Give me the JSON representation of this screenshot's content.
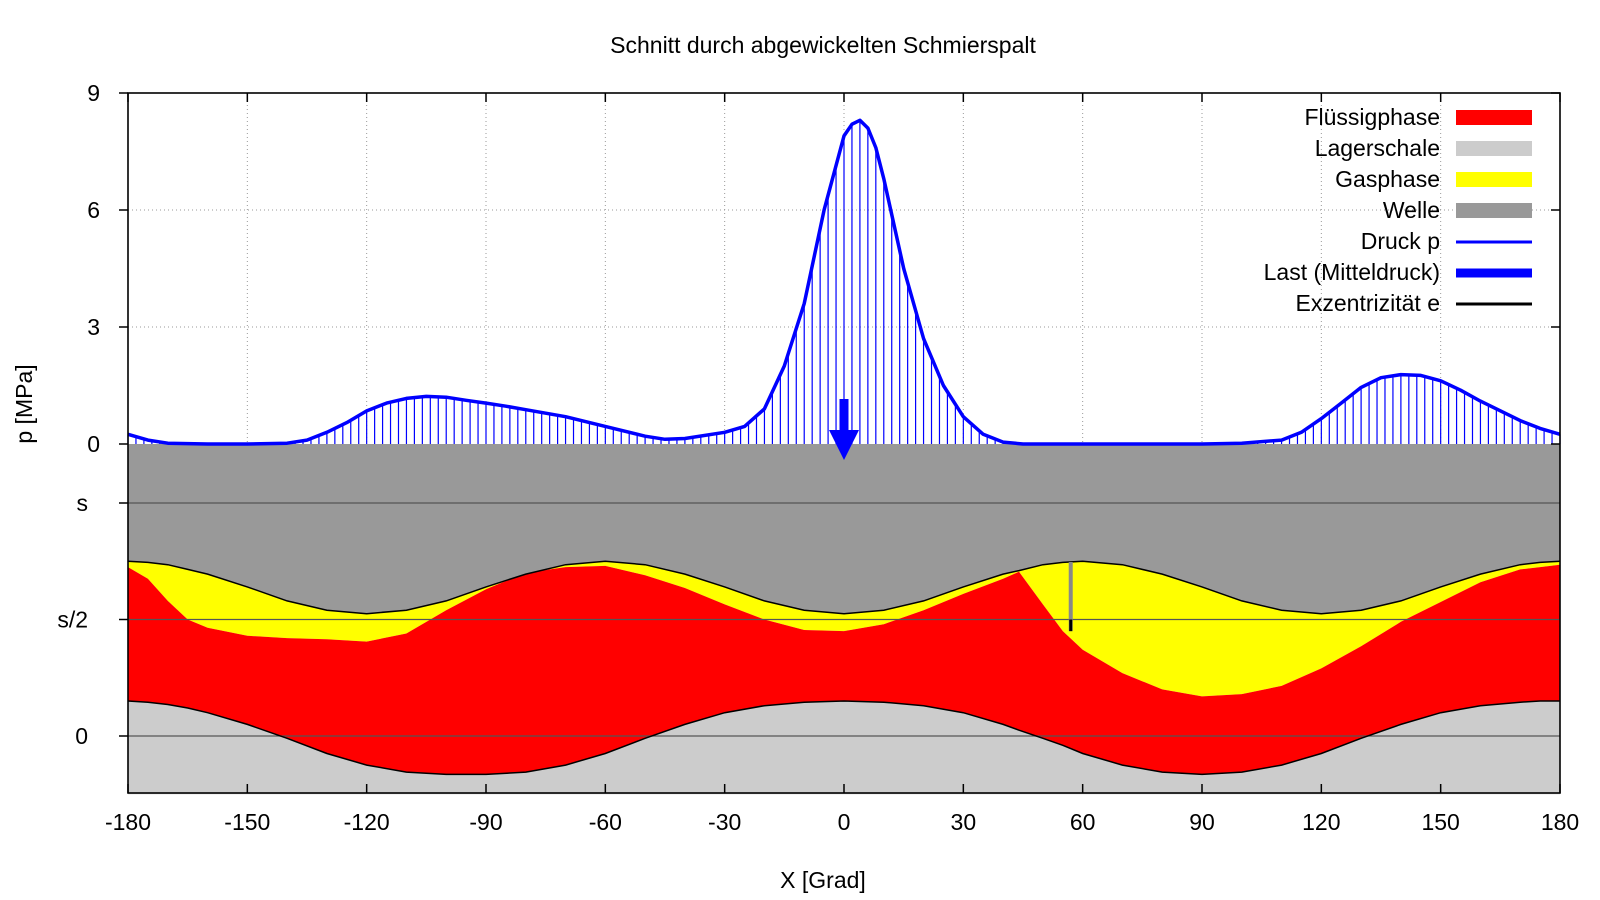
{
  "chart_data": {
    "type": "area",
    "title": "Schnitt durch abgewickelten Schmierspalt",
    "xlabel": "X [Grad]",
    "ylabel": "p [MPa]",
    "xlim": [
      -180,
      180
    ],
    "x_ticks": [
      -180,
      -150,
      -120,
      -90,
      -60,
      -30,
      0,
      30,
      60,
      90,
      120,
      150,
      180
    ],
    "x_tick_labels": [
      "-180",
      "-150",
      "-120",
      "-90",
      "-60",
      "-30",
      "0",
      "30",
      "60",
      "90",
      "120",
      "150",
      "180"
    ],
    "pressure_ylim": [
      0,
      9
    ],
    "pressure_ticks": [
      "0",
      "3",
      "6",
      "9"
    ],
    "gap_ticks": [
      "0",
      "s/2",
      "s"
    ],
    "grid": true,
    "legend_position": "top-right",
    "legend": [
      {
        "label": "Flüssigphase",
        "color": "#ff0000"
      },
      {
        "label": "Lagerschale",
        "color": "#cccccc"
      },
      {
        "label": "Gasphase",
        "color": "#ffff00"
      },
      {
        "label": "Welle",
        "color": "#999999"
      },
      {
        "label": "Druck p",
        "color": "#0000ff"
      },
      {
        "label": "Last (Mitteldruck)",
        "color": "#0000ff"
      },
      {
        "label": "Exzentrizität e",
        "color": "#000000"
      }
    ],
    "pressure": {
      "x": [
        -180,
        -175,
        -170,
        -160,
        -150,
        -140,
        -135,
        -130,
        -125,
        -120,
        -115,
        -110,
        -105,
        -100,
        -95,
        -90,
        -85,
        -80,
        -70,
        -60,
        -50,
        -45,
        -40,
        -30,
        -25,
        -20,
        -15,
        -10,
        -5,
        0,
        2,
        4,
        6,
        8,
        10,
        15,
        20,
        25,
        30,
        35,
        40,
        45,
        50,
        55,
        60,
        70,
        80,
        90,
        100,
        110,
        115,
        120,
        125,
        130,
        135,
        140,
        145,
        150,
        155,
        160,
        170,
        175,
        180
      ],
      "y": [
        0.25,
        0.1,
        0.02,
        0.0,
        0.0,
        0.02,
        0.1,
        0.3,
        0.55,
        0.85,
        1.05,
        1.17,
        1.22,
        1.2,
        1.12,
        1.05,
        0.97,
        0.88,
        0.7,
        0.45,
        0.2,
        0.12,
        0.14,
        0.3,
        0.45,
        0.9,
        2.0,
        3.6,
        6.0,
        7.9,
        8.2,
        8.3,
        8.1,
        7.6,
        6.8,
        4.5,
        2.7,
        1.5,
        0.7,
        0.25,
        0.05,
        0.0,
        0.0,
        0.0,
        0.0,
        0.0,
        0.0,
        0.0,
        0.02,
        0.1,
        0.3,
        0.65,
        1.05,
        1.45,
        1.7,
        1.78,
        1.76,
        1.62,
        1.38,
        1.1,
        0.6,
        0.4,
        0.25
      ]
    },
    "load": {
      "x": 0,
      "value": 1.05
    },
    "eccentricity": {
      "x": 57
    },
    "gap": {
      "x": [
        -180,
        -175,
        -170,
        -165,
        -160,
        -150,
        -140,
        -130,
        -120,
        -110,
        -100,
        -90,
        -80,
        -70,
        -60,
        -50,
        -40,
        -30,
        -20,
        -10,
        0,
        10,
        20,
        30,
        40,
        44,
        50,
        55,
        60,
        70,
        80,
        90,
        100,
        110,
        120,
        130,
        140,
        150,
        160,
        170,
        175,
        180
      ],
      "shell": [
        0.3,
        0.29,
        0.27,
        0.24,
        0.2,
        0.1,
        -0.02,
        -0.15,
        -0.25,
        -0.31,
        -0.33,
        -0.33,
        -0.31,
        -0.25,
        -0.15,
        -0.02,
        0.1,
        0.2,
        0.26,
        0.29,
        0.3,
        0.29,
        0.26,
        0.2,
        0.1,
        0.05,
        -0.02,
        -0.08,
        -0.15,
        -0.25,
        -0.31,
        -0.33,
        -0.31,
        -0.25,
        -0.15,
        -0.02,
        0.1,
        0.2,
        0.26,
        0.29,
        0.3,
        0.3
      ],
      "shaft": [
        1.5,
        1.49,
        1.47,
        1.43,
        1.39,
        1.28,
        1.16,
        1.08,
        1.05,
        1.08,
        1.16,
        1.28,
        1.39,
        1.47,
        1.5,
        1.47,
        1.39,
        1.28,
        1.16,
        1.08,
        1.05,
        1.08,
        1.16,
        1.28,
        1.39,
        1.42,
        1.47,
        1.49,
        1.5,
        1.47,
        1.39,
        1.28,
        1.16,
        1.08,
        1.05,
        1.08,
        1.16,
        1.28,
        1.39,
        1.47,
        1.49,
        1.5
      ],
      "fluid": [
        1.45,
        1.35,
        1.16,
        1.0,
        0.93,
        0.86,
        0.84,
        0.83,
        0.81,
        0.88,
        1.08,
        1.26,
        1.4,
        1.45,
        1.46,
        1.38,
        1.27,
        1.13,
        1.0,
        0.91,
        0.9,
        0.96,
        1.08,
        1.22,
        1.35,
        1.41,
        1.13,
        0.9,
        0.74,
        0.54,
        0.4,
        0.34,
        0.36,
        0.43,
        0.58,
        0.77,
        0.98,
        1.15,
        1.32,
        1.43,
        1.45,
        1.47
      ]
    }
  }
}
